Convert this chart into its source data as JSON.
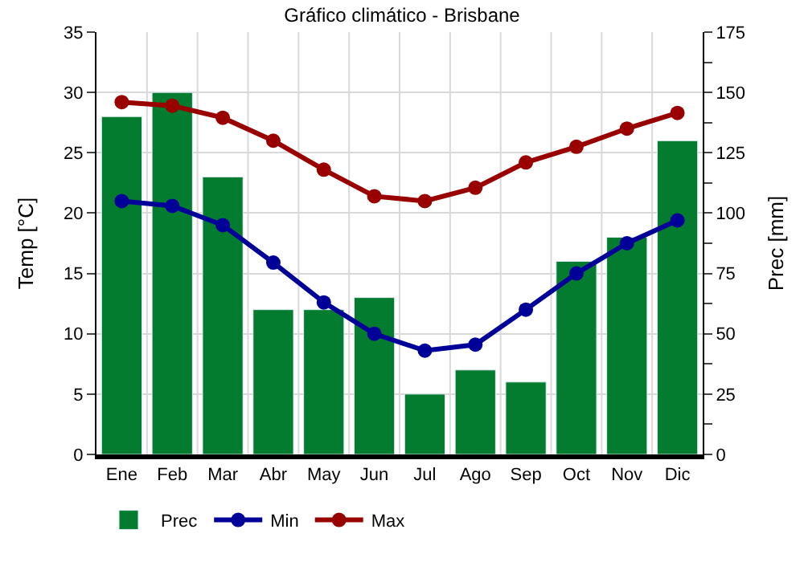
{
  "chart_data": {
    "type": "line",
    "title": "Gráfico climático - Brisbane",
    "categories": [
      "Ene",
      "Feb",
      "Mar",
      "Abr",
      "May",
      "Jun",
      "Jul",
      "Ago",
      "Sep",
      "Oct",
      "Nov",
      "Dic"
    ],
    "series": [
      {
        "name": "Prec",
        "type": "bar",
        "axis": "y2",
        "color": "#037c30",
        "values": [
          140,
          150,
          115,
          60,
          60,
          65,
          25,
          35,
          30,
          80,
          90,
          130
        ]
      },
      {
        "name": "Min",
        "color": "#000099",
        "marker": "circle",
        "values": [
          21,
          20.6,
          19,
          15.9,
          12.6,
          10,
          8.6,
          9.1,
          12,
          15,
          17.5,
          19.4
        ]
      },
      {
        "name": "Max",
        "color": "#990000",
        "marker": "circle",
        "values": [
          29.2,
          28.9,
          27.9,
          26,
          23.6,
          21.4,
          21,
          22.1,
          24.2,
          25.5,
          27,
          28.3
        ]
      }
    ],
    "ylabel": "Temp [°C]",
    "y2label": "Prec [mm]",
    "ylim": [
      0,
      35
    ],
    "yticks": [
      0,
      5,
      10,
      15,
      20,
      25,
      30,
      35
    ],
    "y2lim": [
      0,
      175
    ],
    "y2ticks": [
      0,
      {
        "value": 12.5,
        "label": null
      },
      25,
      {
        "value": 37.5,
        "label": null
      },
      50,
      {
        "value": 62.5,
        "label": null
      },
      75,
      {
        "value": 87.5,
        "label": null
      },
      100,
      {
        "value": 112.5,
        "label": null
      },
      125,
      {
        "value": 137.5,
        "label": null
      },
      150,
      {
        "value": 162.5,
        "label": null
      },
      175
    ],
    "grid": true,
    "legend": "bottom"
  }
}
